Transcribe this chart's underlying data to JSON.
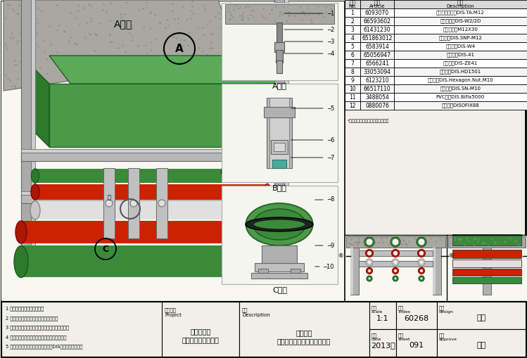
{
  "bg_color": "#f0efe8",
  "table_data": [
    [
      "1",
      "6093070",
      "贯穿式膨胀锁栓DIS-TA.M12"
    ],
    [
      "2",
      "66593602",
      "二维连接件DIS-W2/2D"
    ],
    [
      "3",
      "61431230",
      "外六角螺栓M12X30"
    ],
    [
      "4",
      "651863012",
      "槽颉模才DIS.SNP-M12"
    ],
    [
      "5",
      "6583914",
      "角连接件DIS-W4"
    ],
    [
      "6",
      "65056947",
      "单面槽颉DIS-41"
    ],
    [
      "7",
      "6566241",
      "槽颉端盖DIS-ZE41"
    ],
    [
      "8",
      "33053094",
      "重型管束DIS.HD1501"
    ],
    [
      "9",
      "6123210",
      "法兰螺母DIS.Hexagon.Nut.M10"
    ],
    [
      "10",
      "66517110",
      "管束押盖DIS.SN-M10"
    ],
    [
      "11",
      "3488054",
      "PVC管束DIS.Bifix5000"
    ],
    [
      "12",
      "0880076",
      "保温管束DISOFIX88"
    ]
  ],
  "table_note": "*更多信息请参考汉文最新产品目录",
  "notes": [
    "1 数据和设计以实际工程为准",
    "2 计算和数据必须经过局部测量数据为准",
    "3 设计和计算必须参考当地的建筑规范和建设法规",
    "4 仅置以负责任的态度进行设计和产品材料选型",
    "5 所有的计算和数据以汉文标注文规DIS成品支架系统为准"
  ],
  "title_block": {
    "project_name": "综合水风电\n系统支架的安装方法",
    "desc_name": "综合水风\n刚性支架在混凉土板底的安装",
    "scale_value": "1:1",
    "index_value": "60268",
    "date_value": "2013年",
    "sheet_value": "091",
    "design_value": "唐金",
    "approve_value": "彭飞"
  }
}
